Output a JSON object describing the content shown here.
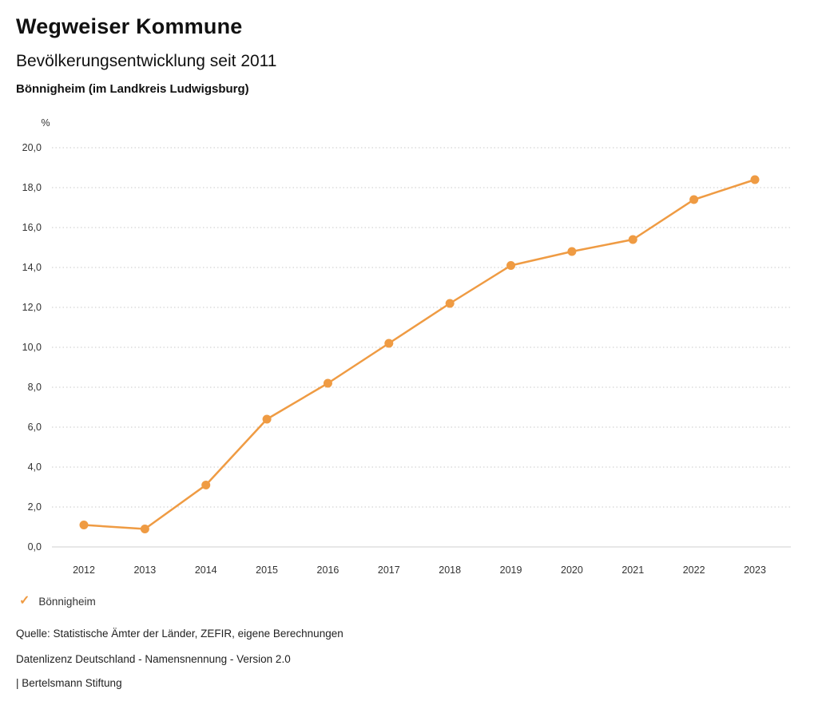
{
  "header": {
    "brand": "Wegweiser Kommune",
    "title": "Bevölkerungsentwicklung seit 2011",
    "subtitle": "Bönnigheim (im Landkreis Ludwigsburg)"
  },
  "chart_data": {
    "type": "line",
    "unit": "%",
    "x": [
      "2012",
      "2013",
      "2014",
      "2015",
      "2016",
      "2017",
      "2018",
      "2019",
      "2020",
      "2021",
      "2022",
      "2023"
    ],
    "series": [
      {
        "name": "Bönnigheim",
        "color": "#EF9B43",
        "values": [
          1.1,
          0.9,
          3.1,
          6.4,
          8.2,
          10.2,
          12.2,
          14.1,
          14.8,
          15.4,
          17.4,
          18.4
        ]
      }
    ],
    "ylim": [
      0,
      20
    ],
    "ytick_step": 2,
    "ytick_labels": [
      "0,0",
      "2,0",
      "4,0",
      "6,0",
      "8,0",
      "10,0",
      "12,0",
      "14,0",
      "16,0",
      "18,0",
      "20,0"
    ],
    "grid": "horizontal-dotted",
    "legend_position": "bottom-left"
  },
  "legend": {
    "items": [
      {
        "label": "Bönnigheim",
        "color": "#EF9B43",
        "marker": "check"
      }
    ]
  },
  "footer": {
    "source": "Quelle: Statistische Ämter der Länder, ZEFIR, eigene Berechnungen",
    "license": "Datenlizenz Deutschland - Namensnennung - Version 2.0",
    "attribution": "| Bertelsmann Stiftung"
  }
}
